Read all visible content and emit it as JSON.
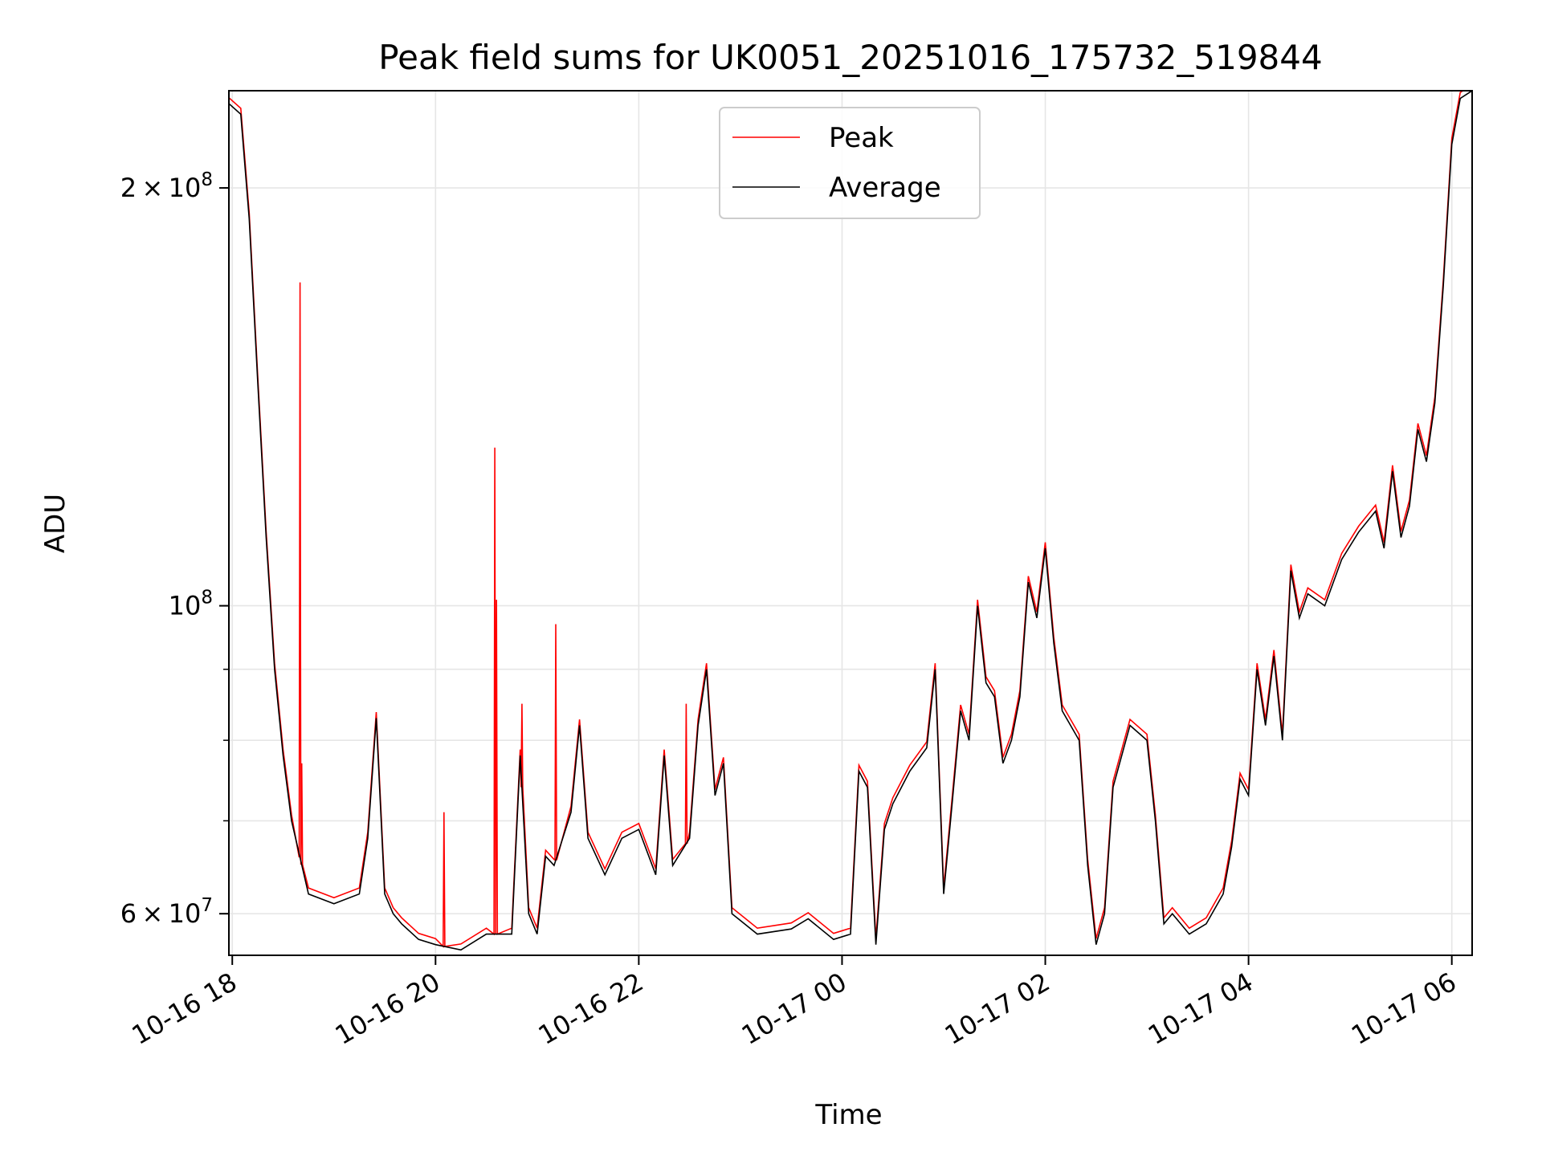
{
  "chart_data": {
    "type": "line",
    "title": "Peak field sums for UK0051_20251016_175732_519844",
    "xlabel": "Time",
    "ylabel": "ADU",
    "y_scale": "log",
    "xlim": [
      "2025-10-16T17:58",
      "2025-10-17T06:12"
    ],
    "ylim": [
      56000000,
      235000000
    ],
    "x_ticks": [
      {
        "label": "10-16 18",
        "time": "2025-10-16T18:00"
      },
      {
        "label": "10-16 20",
        "time": "2025-10-16T20:00"
      },
      {
        "label": "10-16 22",
        "time": "2025-10-16T22:00"
      },
      {
        "label": "10-17 00",
        "time": "2025-10-17T00:00"
      },
      {
        "label": "10-17 02",
        "time": "2025-10-17T02:00"
      },
      {
        "label": "10-17 04",
        "time": "2025-10-17T04:00"
      },
      {
        "label": "10-17 06",
        "time": "2025-10-17T06:00"
      }
    ],
    "y_ticks": [
      {
        "label": "6 × 10^7",
        "base": "6",
        "mant": "10",
        "exp": "7",
        "value": 60000000
      },
      {
        "label": "10^8",
        "base": "",
        "mant": "10",
        "exp": "8",
        "value": 100000000
      },
      {
        "label": "2 × 10^8",
        "base": "2",
        "mant": "10",
        "exp": "8",
        "value": 200000000
      }
    ],
    "grid": true,
    "legend_position": "top-center",
    "series": [
      {
        "name": "Peak",
        "color": "#ff0000",
        "x": [
          "2025-10-16T18:40",
          "2025-10-16T18:41",
          "2025-10-16T20:05",
          "2025-10-16T20:35",
          "2025-10-16T20:36",
          "2025-10-16T20:51",
          "2025-10-16T21:11",
          "2025-10-16T22:28"
        ],
        "y": [
          171000000,
          77000000,
          71000000,
          130000000,
          101000000,
          85000000,
          97000000,
          85000000
        ]
      },
      {
        "name": "Average",
        "color": "#000000",
        "x": [
          "2025-10-16T17:58",
          "2025-10-16T18:05",
          "2025-10-16T18:10",
          "2025-10-16T18:15",
          "2025-10-16T18:20",
          "2025-10-16T18:25",
          "2025-10-16T18:30",
          "2025-10-16T18:35",
          "2025-10-16T18:45",
          "2025-10-16T19:00",
          "2025-10-16T19:15",
          "2025-10-16T19:20",
          "2025-10-16T19:25",
          "2025-10-16T19:30",
          "2025-10-16T19:35",
          "2025-10-16T19:40",
          "2025-10-16T19:50",
          "2025-10-16T20:00",
          "2025-10-16T20:15",
          "2025-10-16T20:30",
          "2025-10-16T20:45",
          "2025-10-16T20:50",
          "2025-10-16T20:55",
          "2025-10-16T21:00",
          "2025-10-16T21:05",
          "2025-10-16T21:10",
          "2025-10-16T21:20",
          "2025-10-16T21:25",
          "2025-10-16T21:30",
          "2025-10-16T21:40",
          "2025-10-16T21:50",
          "2025-10-16T22:00",
          "2025-10-16T22:10",
          "2025-10-16T22:15",
          "2025-10-16T22:20",
          "2025-10-16T22:30",
          "2025-10-16T22:35",
          "2025-10-16T22:40",
          "2025-10-16T22:45",
          "2025-10-16T22:50",
          "2025-10-16T22:55",
          "2025-10-16T23:10",
          "2025-10-16T23:30",
          "2025-10-16T23:40",
          "2025-10-16T23:55",
          "2025-10-17T00:05",
          "2025-10-17T00:10",
          "2025-10-17T00:15",
          "2025-10-17T00:20",
          "2025-10-17T00:25",
          "2025-10-17T00:30",
          "2025-10-17T00:40",
          "2025-10-17T00:50",
          "2025-10-17T00:55",
          "2025-10-17T01:00",
          "2025-10-17T01:05",
          "2025-10-17T01:10",
          "2025-10-17T01:15",
          "2025-10-17T01:20",
          "2025-10-17T01:25",
          "2025-10-17T01:30",
          "2025-10-17T01:35",
          "2025-10-17T01:40",
          "2025-10-17T01:45",
          "2025-10-17T01:50",
          "2025-10-17T01:55",
          "2025-10-17T02:00",
          "2025-10-17T02:05",
          "2025-10-17T02:10",
          "2025-10-17T02:20",
          "2025-10-17T02:25",
          "2025-10-17T02:30",
          "2025-10-17T02:35",
          "2025-10-17T02:40",
          "2025-10-17T02:50",
          "2025-10-17T03:00",
          "2025-10-17T03:05",
          "2025-10-17T03:10",
          "2025-10-17T03:15",
          "2025-10-17T03:25",
          "2025-10-17T03:35",
          "2025-10-17T03:45",
          "2025-10-17T03:50",
          "2025-10-17T03:55",
          "2025-10-17T04:00",
          "2025-10-17T04:05",
          "2025-10-17T04:10",
          "2025-10-17T04:15",
          "2025-10-17T04:20",
          "2025-10-17T04:25",
          "2025-10-17T04:30",
          "2025-10-17T04:35",
          "2025-10-17T04:45",
          "2025-10-17T04:55",
          "2025-10-17T05:05",
          "2025-10-17T05:15",
          "2025-10-17T05:20",
          "2025-10-17T05:25",
          "2025-10-17T05:30",
          "2025-10-17T05:35",
          "2025-10-17T05:40",
          "2025-10-17T05:45",
          "2025-10-17T05:50",
          "2025-10-17T05:55",
          "2025-10-17T06:00",
          "2025-10-17T06:05",
          "2025-10-17T06:12"
        ],
        "y": [
          230000000,
          226000000,
          190000000,
          145000000,
          112000000,
          90000000,
          78000000,
          70000000,
          62000000,
          61000000,
          62000000,
          68000000,
          83000000,
          62000000,
          60000000,
          59000000,
          57500000,
          57000000,
          56500000,
          58000000,
          58000000,
          78000000,
          60000000,
          58000000,
          66000000,
          65000000,
          71000000,
          82000000,
          68000000,
          64000000,
          68000000,
          69000000,
          64000000,
          78000000,
          65000000,
          68000000,
          82000000,
          90000000,
          73000000,
          77000000,
          60000000,
          58000000,
          58500000,
          59500000,
          57500000,
          58000000,
          76000000,
          74000000,
          57000000,
          69000000,
          72000000,
          76000000,
          79000000,
          90000000,
          62000000,
          72000000,
          84000000,
          80000000,
          100000000,
          88000000,
          86000000,
          77000000,
          80000000,
          86000000,
          104000000,
          98000000,
          110000000,
          94000000,
          84000000,
          80000000,
          65000000,
          57000000,
          60000000,
          74000000,
          82000000,
          80000000,
          70000000,
          59000000,
          60000000,
          58000000,
          59000000,
          62000000,
          67000000,
          75000000,
          73000000,
          90000000,
          82000000,
          92000000,
          80000000,
          106000000,
          98000000,
          102000000,
          100000000,
          108000000,
          113000000,
          117000000,
          110000000,
          125000000,
          112000000,
          118000000,
          134000000,
          127000000,
          140000000,
          170000000,
          215000000,
          232000000,
          235000000
        ]
      }
    ]
  }
}
